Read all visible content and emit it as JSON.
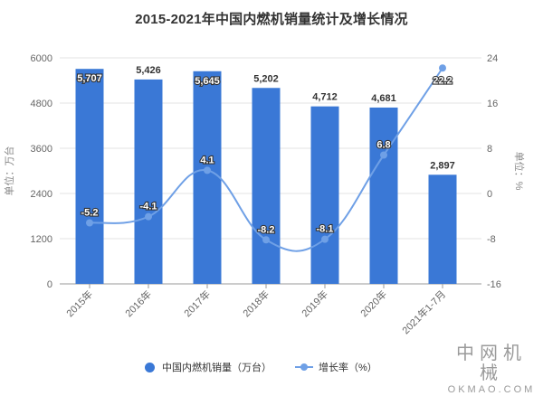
{
  "title": "2015-2021年中国内燃机销量统计及增长情况",
  "chart_data": {
    "type": "bar+line",
    "title": "2015-2021年中国内燃机销量统计及增长情况",
    "categories": [
      "2015年",
      "2016年",
      "2017年",
      "2018年",
      "2019年",
      "2020年",
      "2021年1-7月"
    ],
    "series": [
      {
        "name": "中国内燃机销量（万台）",
        "type": "bar",
        "axis": "left",
        "color": "#3a78d6",
        "values": [
          5707,
          5426,
          5645,
          5202,
          4712,
          4681,
          2897
        ],
        "labels": [
          "5,707",
          "5,426",
          "5,645",
          "5,202",
          "4,712",
          "4,681",
          "2,897"
        ]
      },
      {
        "name": "增长率（%）",
        "type": "line",
        "axis": "right",
        "color": "#6fa0e6",
        "values": [
          -5.2,
          -4.1,
          4.1,
          -8.2,
          -8.1,
          6.8,
          22.2
        ],
        "labels": [
          "-5.2",
          "-4.1",
          "4.1",
          "-8.2",
          "-8.1",
          "6.8",
          "22.2"
        ]
      }
    ],
    "ylabel": "单位：万台",
    "y2label": "单位：%",
    "ylim": [
      0,
      6000
    ],
    "yticks": [
      "0",
      "1200",
      "2400",
      "3600",
      "4800",
      "6000"
    ],
    "y2lim": [
      -16,
      24
    ],
    "y2ticks": [
      "-16",
      "-8",
      "0",
      "8",
      "16",
      "24"
    ],
    "grid": true,
    "legend_position": "bottom"
  },
  "legend": {
    "bar_label": "中国内燃机销量（万台）",
    "line_label": "增长率（%）"
  },
  "brand": {
    "cn": "中网机械",
    "en": "OKMAO.COM"
  }
}
